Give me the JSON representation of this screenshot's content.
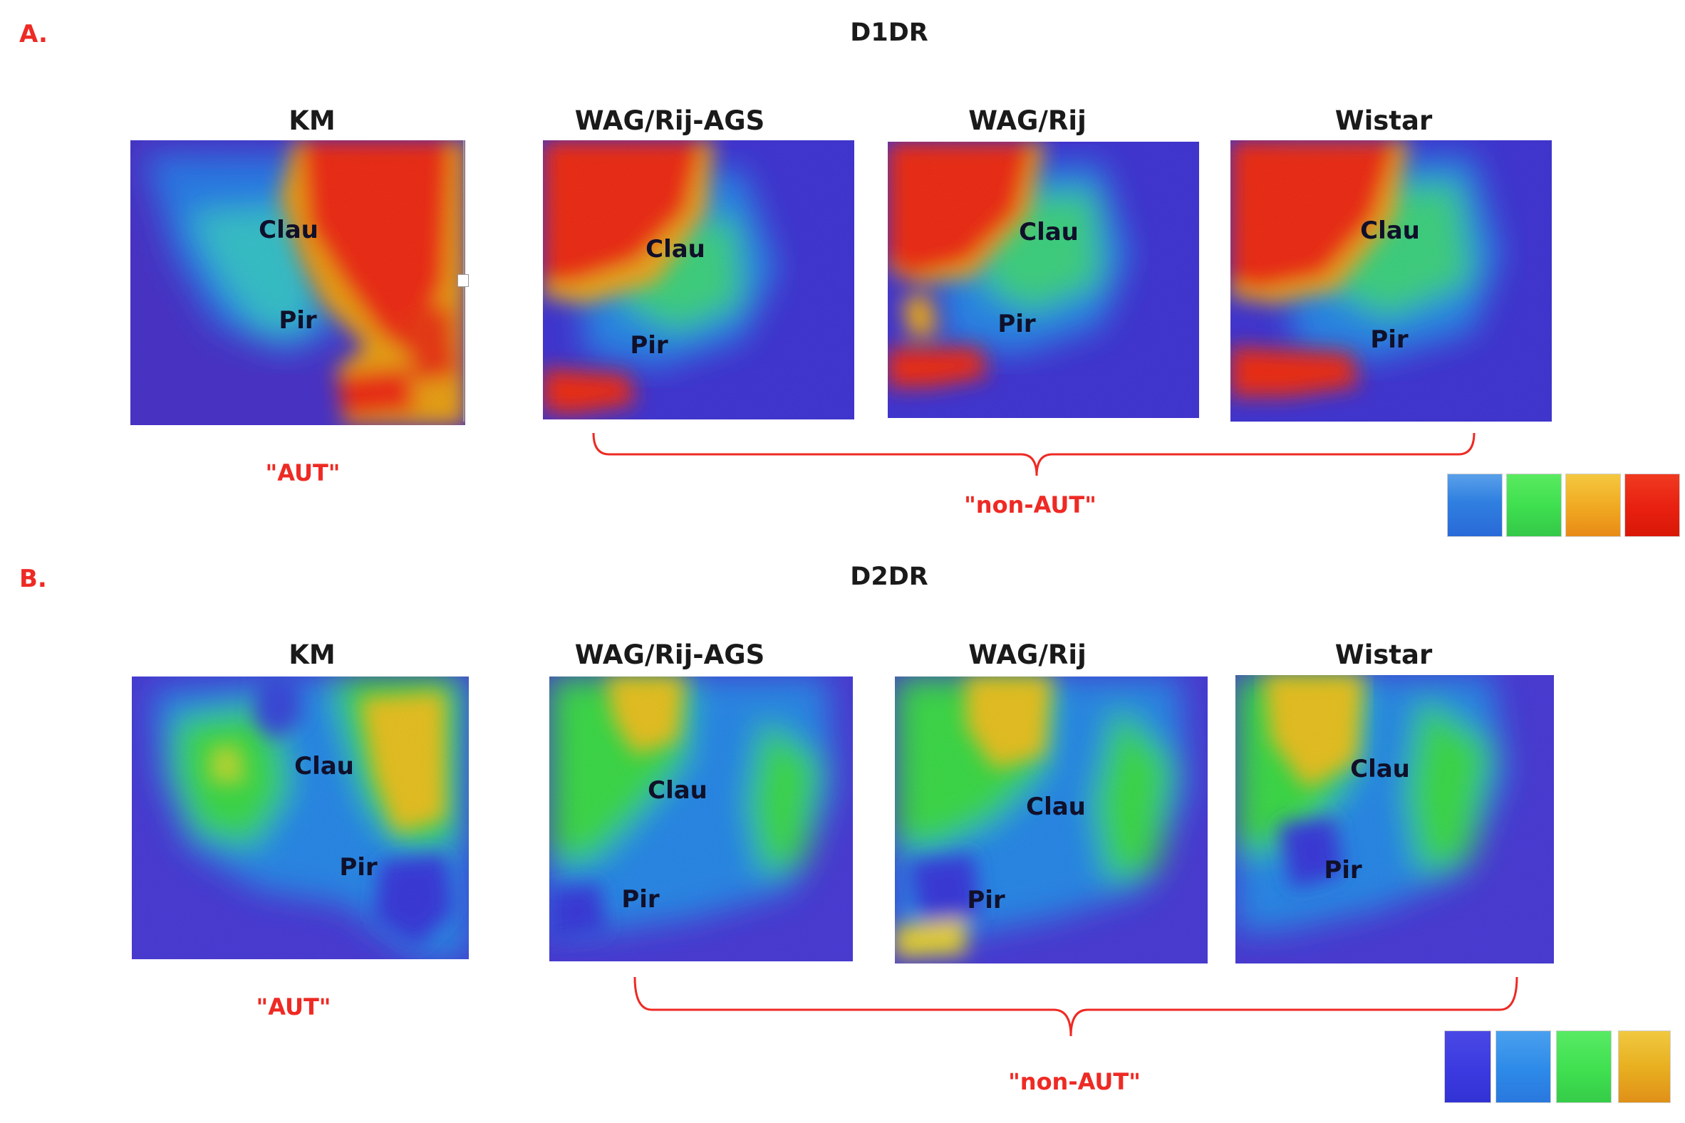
{
  "panels": [
    {
      "letter": "A.",
      "title": "D1DR",
      "strains": [
        "KM",
        "WAG/Rij-AGS",
        "WAG/Rij",
        "Wistar"
      ],
      "regions": {
        "clau": "Clau",
        "pir": "Pir"
      },
      "aut_label": "\"AUT\"",
      "non_aut_label": "\"non-AUT\"",
      "scale_colors": [
        "#2f7fe0",
        "#3fe050",
        "#f0a820",
        "#e82010"
      ]
    },
    {
      "letter": "B.",
      "title": "D2DR",
      "strains": [
        "KM",
        "WAG/Rij-AGS",
        "WAG/Rij",
        "Wistar"
      ],
      "regions": {
        "clau": "Clau",
        "pir": "Pir"
      },
      "aut_label": "\"AUT\"",
      "non_aut_label": "\"non-AUT\"",
      "scale_colors": [
        "#3a3ae0",
        "#2d8ae8",
        "#3fe050",
        "#e8b020"
      ]
    }
  ],
  "colors": {
    "accent_red": "#ee2a24",
    "background_blue": "#3e33d8",
    "mid_blue": "#2a88e6",
    "green": "#3cd84a",
    "yellow": "#e6c020",
    "red": "#ec2a14"
  }
}
